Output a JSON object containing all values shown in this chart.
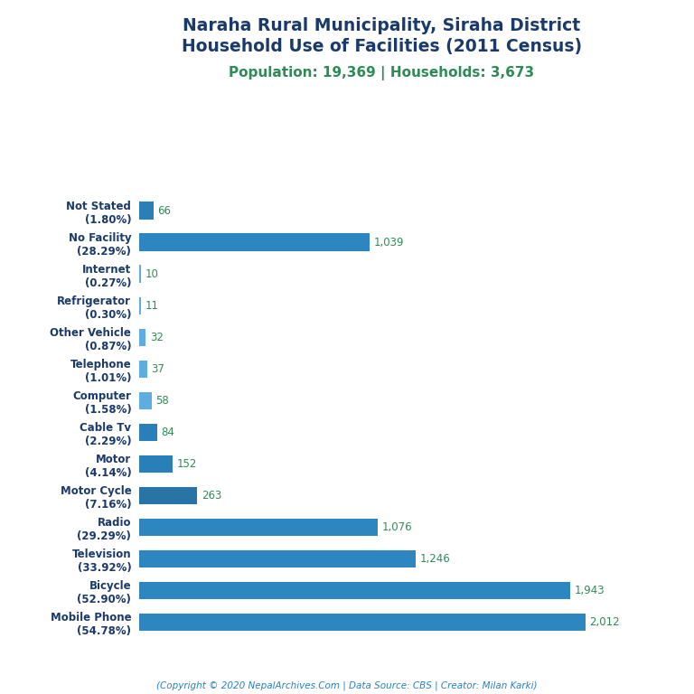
{
  "title_line1": "Naraha Rural Municipality, Siraha District",
  "title_line2": "Household Use of Facilities (2011 Census)",
  "subtitle": "Population: 19,369 | Households: 3,673",
  "footer": "(Copyright © 2020 NepalArchives.Com | Data Source: CBS | Creator: Milan Karki)",
  "categories": [
    "Not Stated\n(1.80%)",
    "No Facility\n(28.29%)",
    "Internet\n(0.27%)",
    "Refrigerator\n(0.30%)",
    "Other Vehicle\n(0.87%)",
    "Telephone\n(1.01%)",
    "Computer\n(1.58%)",
    "Cable Tv\n(2.29%)",
    "Motor\n(4.14%)",
    "Motor Cycle\n(7.16%)",
    "Radio\n(29.29%)",
    "Television\n(33.92%)",
    "Bicycle\n(52.90%)",
    "Mobile Phone\n(54.78%)"
  ],
  "values": [
    66,
    1039,
    10,
    11,
    32,
    37,
    58,
    84,
    152,
    263,
    1076,
    1246,
    1943,
    2012
  ],
  "title_color": "#1a3a6b",
  "subtitle_color": "#2e8b57",
  "value_label_color": "#2e8b57",
  "ylabel_color": "#1a3a6b",
  "footer_color": "#2980b9",
  "background_color": "#ffffff",
  "xlim": [
    0,
    2250
  ],
  "figsize": [
    7.68,
    7.68
  ],
  "dpi": 100
}
